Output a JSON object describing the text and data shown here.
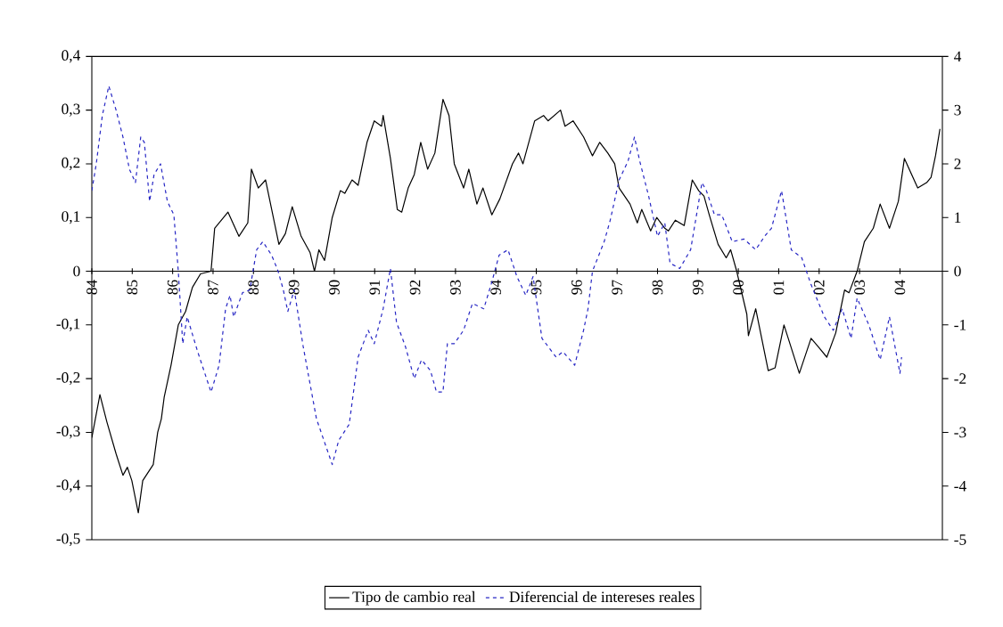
{
  "chart_data": {
    "type": "line",
    "xlim": [
      1984,
      2005.05
    ],
    "xticks": [
      {
        "value": 1984,
        "label": "84"
      },
      {
        "value": 1985,
        "label": "85"
      },
      {
        "value": 1986,
        "label": "86"
      },
      {
        "value": 1987,
        "label": "87"
      },
      {
        "value": 1988,
        "label": "88"
      },
      {
        "value": 1989,
        "label": "89"
      },
      {
        "value": 1990,
        "label": "90"
      },
      {
        "value": 1991,
        "label": "91"
      },
      {
        "value": 1992,
        "label": "92"
      },
      {
        "value": 1993,
        "label": "93"
      },
      {
        "value": 1994,
        "label": "94"
      },
      {
        "value": 1995,
        "label": "95"
      },
      {
        "value": 1996,
        "label": "96"
      },
      {
        "value": 1997,
        "label": "97"
      },
      {
        "value": 1998,
        "label": "98"
      },
      {
        "value": 1999,
        "label": "99"
      },
      {
        "value": 2000,
        "label": "00"
      },
      {
        "value": 2001,
        "label": "01"
      },
      {
        "value": 2002,
        "label": "02"
      },
      {
        "value": 2003,
        "label": "03"
      },
      {
        "value": 2004,
        "label": "04"
      }
    ],
    "ylim": [
      -0.5,
      0.4
    ],
    "yticks": [
      {
        "value": -0.5,
        "label": "-0,5"
      },
      {
        "value": -0.4,
        "label": "-0,4"
      },
      {
        "value": -0.3,
        "label": "-0,3"
      },
      {
        "value": -0.2,
        "label": "-0,2"
      },
      {
        "value": -0.1,
        "label": "-0,1"
      },
      0,
      {
        "value": 0.1,
        "label": "0,1"
      },
      {
        "value": 0.2,
        "label": "0,2"
      },
      {
        "value": 0.3,
        "label": "0,3"
      },
      {
        "value": 0.4,
        "label": "0,4"
      }
    ],
    "y2lim": [
      -5,
      4
    ],
    "y2ticks": [
      -5,
      -4,
      -3,
      -2,
      -1,
      0,
      1,
      2,
      3,
      4
    ],
    "legend": "bottom",
    "series": [
      {
        "name": "Tipo de cambio real",
        "color": "#000000",
        "line_style": "solid",
        "x": [
          1984.0,
          1984.2,
          1984.37,
          1984.6,
          1984.77,
          1984.88,
          1984.99,
          1985.15,
          1985.26,
          1985.39,
          1985.52,
          1985.63,
          1985.72,
          1985.79,
          1985.96,
          1986.14,
          1986.32,
          1986.49,
          1986.69,
          1986.95,
          1987.04,
          1987.37,
          1987.64,
          1987.86,
          1987.95,
          1988.12,
          1988.3,
          1988.63,
          1988.79,
          1988.96,
          1989.18,
          1989.4,
          1989.51,
          1989.62,
          1989.76,
          1989.95,
          1990.15,
          1990.26,
          1990.44,
          1990.59,
          1990.81,
          1990.99,
          1991.17,
          1991.21,
          1991.39,
          1991.56,
          1991.67,
          1991.83,
          1991.98,
          1992.14,
          1992.31,
          1992.49,
          1992.69,
          1992.84,
          1992.97,
          1993.2,
          1993.33,
          1993.53,
          1993.68,
          1993.9,
          1994.1,
          1994.41,
          1994.56,
          1994.67,
          1994.96,
          1995.18,
          1995.29,
          1995.6,
          1995.71,
          1995.91,
          1996.17,
          1996.39,
          1996.57,
          1996.77,
          1996.94,
          1997.05,
          1997.32,
          1997.5,
          1997.61,
          1997.83,
          1997.98,
          1998.18,
          1998.27,
          1998.44,
          1998.66,
          1998.86,
          1999.02,
          1999.15,
          1999.28,
          1999.5,
          1999.7,
          1999.81,
          1999.96,
          2000.21,
          2000.25,
          2000.43,
          2000.74,
          2000.91,
          2001.13,
          2001.51,
          2001.8,
          2001.97,
          2002.19,
          2002.41,
          2002.63,
          2002.74,
          2002.94,
          2003.12,
          2003.34,
          2003.51,
          2003.74,
          2003.96,
          2004.11,
          2004.44,
          2004.66,
          2004.77,
          2004.88,
          2004.99
        ],
        "values": [
          -0.31,
          -0.23,
          -0.28,
          -0.34,
          -0.38,
          -0.365,
          -0.39,
          -0.45,
          -0.39,
          -0.375,
          -0.36,
          -0.3,
          -0.275,
          -0.235,
          -0.175,
          -0.1,
          -0.075,
          -0.03,
          -0.005,
          0.0,
          0.08,
          0.11,
          0.065,
          0.09,
          0.19,
          0.155,
          0.17,
          0.05,
          0.07,
          0.12,
          0.065,
          0.035,
          0.0,
          0.04,
          0.02,
          0.1,
          0.15,
          0.145,
          0.17,
          0.16,
          0.24,
          0.28,
          0.27,
          0.29,
          0.21,
          0.115,
          0.11,
          0.155,
          0.18,
          0.24,
          0.19,
          0.22,
          0.32,
          0.29,
          0.2,
          0.155,
          0.19,
          0.125,
          0.155,
          0.105,
          0.135,
          0.2,
          0.22,
          0.2,
          0.28,
          0.29,
          0.28,
          0.3,
          0.27,
          0.28,
          0.25,
          0.215,
          0.24,
          0.22,
          0.2,
          0.155,
          0.125,
          0.09,
          0.115,
          0.075,
          0.1,
          0.08,
          0.075,
          0.095,
          0.085,
          0.17,
          0.15,
          0.14,
          0.105,
          0.05,
          0.025,
          0.04,
          0.0,
          -0.08,
          -0.12,
          -0.07,
          -0.185,
          -0.18,
          -0.1,
          -0.19,
          -0.125,
          -0.14,
          -0.16,
          -0.115,
          -0.035,
          -0.04,
          0.0,
          0.055,
          0.08,
          0.125,
          0.08,
          0.13,
          0.21,
          0.155,
          0.165,
          0.175,
          0.215,
          0.265
        ]
      },
      {
        "name": "Diferencial de intereses reales",
        "color": "#2626c4",
        "line_style": "dashed",
        "axis": "y2",
        "x": [
          1984.0,
          1984.11,
          1984.26,
          1984.42,
          1984.6,
          1984.77,
          1984.93,
          1985.08,
          1985.21,
          1985.3,
          1985.43,
          1985.54,
          1985.7,
          1985.87,
          1986.03,
          1986.14,
          1986.25,
          1986.36,
          1986.62,
          1986.95,
          1987.15,
          1987.31,
          1987.42,
          1987.51,
          1987.73,
          1987.91,
          1988.08,
          1988.23,
          1988.45,
          1988.61,
          1988.74,
          1988.85,
          1989.01,
          1989.23,
          1989.56,
          1989.95,
          1990.11,
          1990.37,
          1990.59,
          1990.84,
          1990.99,
          1991.21,
          1991.39,
          1991.54,
          1991.76,
          1991.98,
          1992.16,
          1992.38,
          1992.53,
          1992.69,
          1992.8,
          1992.97,
          1993.2,
          1993.42,
          1993.7,
          1993.9,
          1994.08,
          1994.3,
          1994.52,
          1994.74,
          1994.92,
          1995.14,
          1995.49,
          1995.66,
          1995.95,
          1996.17,
          1996.28,
          1996.39,
          1996.68,
          1996.83,
          1997.05,
          1997.27,
          1997.43,
          1997.56,
          1997.78,
          1998.0,
          1998.18,
          1998.31,
          1998.55,
          1998.82,
          1999.1,
          1999.21,
          1999.41,
          1999.59,
          1999.85,
          2000.14,
          2000.43,
          2000.65,
          2000.82,
          2001.07,
          2001.31,
          2001.57,
          2001.8,
          2002.13,
          2002.35,
          2002.57,
          2002.79,
          2002.94,
          2003.23,
          2003.51,
          2003.74,
          2004.0,
          2004.04
        ],
        "values": [
          1.5,
          2.0,
          2.9,
          3.45,
          3.0,
          2.5,
          1.9,
          1.65,
          2.5,
          2.4,
          1.3,
          1.8,
          2.0,
          1.3,
          1.05,
          0.0,
          -1.35,
          -0.85,
          -1.5,
          -2.25,
          -1.75,
          -0.7,
          -0.45,
          -0.85,
          -0.4,
          -0.35,
          0.4,
          0.55,
          0.3,
          0.0,
          -0.35,
          -0.75,
          -0.35,
          -1.4,
          -2.75,
          -3.6,
          -3.15,
          -2.85,
          -1.6,
          -1.1,
          -1.35,
          -0.7,
          0.05,
          -0.95,
          -1.4,
          -2.0,
          -1.65,
          -1.85,
          -2.25,
          -2.25,
          -1.35,
          -1.35,
          -1.1,
          -0.6,
          -0.7,
          -0.2,
          0.3,
          0.4,
          -0.1,
          -0.45,
          -0.1,
          -1.25,
          -1.6,
          -1.5,
          -1.75,
          -1.1,
          -0.7,
          0.0,
          0.55,
          0.95,
          1.7,
          2.05,
          2.5,
          2.05,
          1.4,
          0.65,
          0.9,
          0.15,
          0.05,
          0.4,
          1.65,
          1.5,
          1.05,
          1.05,
          0.55,
          0.6,
          0.4,
          0.65,
          0.8,
          1.5,
          0.4,
          0.25,
          -0.25,
          -0.85,
          -1.1,
          -0.7,
          -1.25,
          -0.5,
          -1.0,
          -1.65,
          -0.85,
          -1.9,
          -1.6
        ]
      }
    ]
  }
}
